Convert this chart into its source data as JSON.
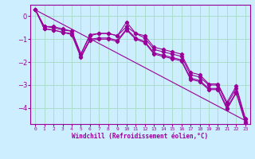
{
  "xlabel": "Windchill (Refroidissement éolien,°C)",
  "background_color": "#cceeff",
  "line_color": "#990099",
  "grid_color": "#aaddcc",
  "xlim": [
    -0.5,
    23.5
  ],
  "ylim": [
    -4.7,
    0.5
  ],
  "yticks": [
    0,
    -1,
    -2,
    -3,
    -4
  ],
  "xticks": [
    0,
    1,
    2,
    3,
    4,
    5,
    6,
    7,
    8,
    9,
    10,
    11,
    12,
    13,
    14,
    15,
    16,
    17,
    18,
    19,
    20,
    21,
    22,
    23
  ],
  "series": [
    [
      0.3,
      -0.45,
      -0.45,
      -0.55,
      -0.65,
      -1.65,
      -0.85,
      -0.75,
      -0.75,
      -0.85,
      -0.25,
      -0.75,
      -0.85,
      -1.35,
      -1.45,
      -1.55,
      -1.65,
      -2.45,
      -2.55,
      -2.95,
      -2.95,
      -3.75,
      -3.05,
      -4.45
    ],
    [
      0.3,
      -0.45,
      -0.5,
      -0.6,
      -0.65,
      -1.65,
      -0.8,
      -0.75,
      -0.75,
      -0.85,
      -0.45,
      -0.75,
      -0.95,
      -1.45,
      -1.55,
      -1.65,
      -1.75,
      -2.55,
      -2.65,
      -3.0,
      -3.0,
      -3.85,
      -3.15,
      -4.5
    ],
    [
      0.3,
      -0.55,
      -0.6,
      -0.7,
      -0.75,
      -1.75,
      -1.0,
      -0.95,
      -0.95,
      -1.05,
      -0.55,
      -0.95,
      -1.1,
      -1.6,
      -1.7,
      -1.8,
      -1.9,
      -2.7,
      -2.8,
      -3.15,
      -3.15,
      -4.0,
      -3.3,
      -4.6
    ],
    [
      0.3,
      -0.55,
      -0.6,
      -0.7,
      -0.8,
      -1.8,
      -1.05,
      -1.0,
      -1.0,
      -1.1,
      -0.6,
      -1.0,
      -1.15,
      -1.65,
      -1.75,
      -1.85,
      -1.95,
      -2.75,
      -2.85,
      -3.2,
      -3.2,
      -4.05,
      -3.35,
      -4.65
    ]
  ],
  "regression": [
    0.28,
    -4.55
  ]
}
